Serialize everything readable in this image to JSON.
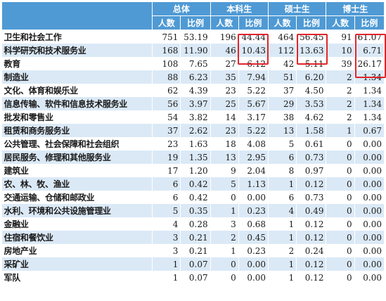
{
  "header": {
    "groups": [
      "总体",
      "本科生",
      "硕士生",
      "博士生"
    ],
    "sub": [
      "人数",
      "比例"
    ]
  },
  "rows": [
    {
      "industry": "卫生和社会工作",
      "t_n": "751",
      "t_p": "53.19",
      "b_n": "196",
      "b_p": "44.44",
      "m_n": "464",
      "m_p": "56.45",
      "d_n": "91",
      "d_p": "61.07"
    },
    {
      "industry": "科学研究和技术服务业",
      "t_n": "168",
      "t_p": "11.90",
      "b_n": "46",
      "b_p": "10.43",
      "m_n": "112",
      "m_p": "13.63",
      "d_n": "10",
      "d_p": "6.71"
    },
    {
      "industry": "教育",
      "t_n": "108",
      "t_p": "7.65",
      "b_n": "27",
      "b_p": "6.12",
      "m_n": "42",
      "m_p": "5.11",
      "d_n": "39",
      "d_p": "26.17"
    },
    {
      "industry": "制造业",
      "t_n": "88",
      "t_p": "6.23",
      "b_n": "35",
      "b_p": "7.94",
      "m_n": "51",
      "m_p": "6.20",
      "d_n": "2",
      "d_p": "1.34"
    },
    {
      "industry": "文化、体育和娱乐业",
      "t_n": "62",
      "t_p": "4.39",
      "b_n": "23",
      "b_p": "5.22",
      "m_n": "37",
      "m_p": "4.50",
      "d_n": "2",
      "d_p": "1.34"
    },
    {
      "industry": "信息传输、软件和信息技术服务业",
      "t_n": "56",
      "t_p": "3.97",
      "b_n": "25",
      "b_p": "5.67",
      "m_n": "29",
      "m_p": "3.53",
      "d_n": "2",
      "d_p": "1.34"
    },
    {
      "industry": "批发和零售业",
      "t_n": "54",
      "t_p": "3.82",
      "b_n": "14",
      "b_p": "3.17",
      "m_n": "38",
      "m_p": "4.62",
      "d_n": "2",
      "d_p": "1.34"
    },
    {
      "industry": "租赁和商务服务业",
      "t_n": "37",
      "t_p": "2.62",
      "b_n": "23",
      "b_p": "5.22",
      "m_n": "13",
      "m_p": "1.58",
      "d_n": "1",
      "d_p": "0.67"
    },
    {
      "industry": "公共管理、社会保障和社会组织",
      "t_n": "23",
      "t_p": "1.63",
      "b_n": "18",
      "b_p": "4.08",
      "m_n": "5",
      "m_p": "0.61",
      "d_n": "0",
      "d_p": "0.00"
    },
    {
      "industry": "居民服务、修理和其他服务业",
      "t_n": "19",
      "t_p": "1.35",
      "b_n": "13",
      "b_p": "2.95",
      "m_n": "6",
      "m_p": "0.73",
      "d_n": "0",
      "d_p": "0.00"
    },
    {
      "industry": "建筑业",
      "t_n": "17",
      "t_p": "1.20",
      "b_n": "9",
      "b_p": "2.04",
      "m_n": "8",
      "m_p": "0.97",
      "d_n": "0",
      "d_p": "0.00"
    },
    {
      "industry": "农、林、牧、渔业",
      "t_n": "6",
      "t_p": "0.42",
      "b_n": "5",
      "b_p": "1.13",
      "m_n": "1",
      "m_p": "0.12",
      "d_n": "0",
      "d_p": "0.00"
    },
    {
      "industry": "交通运输、仓储和邮政业",
      "t_n": "6",
      "t_p": "0.42",
      "b_n": "0",
      "b_p": "0.00",
      "m_n": "6",
      "m_p": "0.73",
      "d_n": "0",
      "d_p": "0.00"
    },
    {
      "industry": "水利、环境和公共设施管理业",
      "t_n": "5",
      "t_p": "0.35",
      "b_n": "1",
      "b_p": "0.23",
      "m_n": "4",
      "m_p": "0.49",
      "d_n": "0",
      "d_p": "0.00"
    },
    {
      "industry": "金融业",
      "t_n": "4",
      "t_p": "0.28",
      "b_n": "3",
      "b_p": "0.68",
      "m_n": "1",
      "m_p": "0.12",
      "d_n": "0",
      "d_p": "0.00"
    },
    {
      "industry": "住宿和餐饮业",
      "t_n": "3",
      "t_p": "0.21",
      "b_n": "2",
      "b_p": "0.45",
      "m_n": "1",
      "m_p": "0.12",
      "d_n": "0",
      "d_p": "0.00"
    },
    {
      "industry": "房地产业",
      "t_n": "3",
      "t_p": "0.21",
      "b_n": "1",
      "b_p": "0.23",
      "m_n": "2",
      "m_p": "0.24",
      "d_n": "0",
      "d_p": "0.00"
    },
    {
      "industry": "采矿业",
      "t_n": "1",
      "t_p": "0.07",
      "b_n": "0",
      "b_p": "0.00",
      "m_n": "1",
      "m_p": "0.12",
      "d_n": "0",
      "d_p": "0.00"
    },
    {
      "industry": "军队",
      "t_n": "1",
      "t_p": "0.07",
      "b_n": "0",
      "b_p": "0.00",
      "m_n": "1",
      "m_p": "0.12",
      "d_n": "0",
      "d_p": "0.00"
    }
  ],
  "colors": {
    "header_bg": "#4f9ad4",
    "row_stripe": "#dbe9f6",
    "highlight_border": "#e0252b"
  }
}
